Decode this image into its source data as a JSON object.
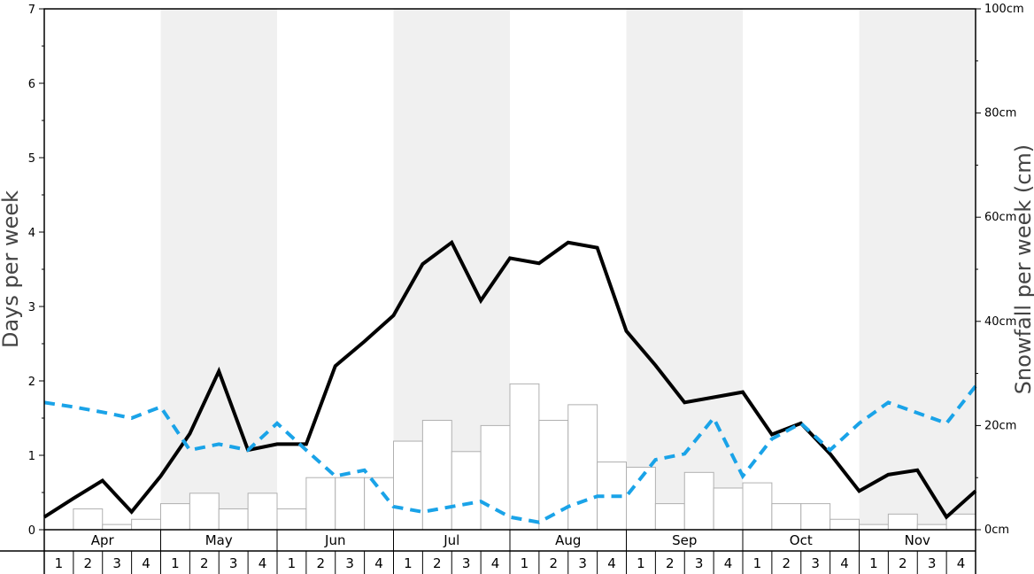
{
  "chart_data": {
    "type": "bar+line",
    "months": [
      "Apr",
      "May",
      "Jun",
      "Jul",
      "Aug",
      "Sep",
      "Oct",
      "Nov"
    ],
    "week_labels": [
      "1",
      "2",
      "3",
      "4"
    ],
    "left_axis": {
      "label": "Days per week",
      "ylim": [
        0,
        7
      ],
      "ticks": [
        0,
        1,
        2,
        3,
        4,
        5,
        6,
        7
      ],
      "tick_labels": [
        "0",
        "1",
        "2",
        "3",
        "4",
        "5",
        "6",
        "7"
      ]
    },
    "right_axis": {
      "label": "Snowfall per week (cm)",
      "ylim": [
        0,
        100
      ],
      "ticks": [
        0,
        20,
        40,
        60,
        80,
        100
      ],
      "tick_labels": [
        "0cm",
        "20cm",
        "40cm",
        "60cm",
        "80cm",
        "100cm"
      ]
    },
    "series": [
      {
        "kind": "bar",
        "axis": "right",
        "values": [
          0,
          4,
          1,
          2,
          5,
          7,
          4,
          7,
          4,
          10,
          10,
          10,
          17,
          21,
          15,
          20,
          28,
          21,
          24,
          13,
          12,
          5,
          11,
          8,
          9,
          5,
          5,
          2,
          1,
          3,
          1,
          3
        ]
      },
      {
        "kind": "line",
        "axis": "left",
        "style": "solid",
        "color": "#000000",
        "values": [
          0.17,
          0.42,
          0.66,
          0.24,
          0.72,
          1.29,
          2.13,
          1.07,
          1.15,
          1.15,
          2.2,
          2.53,
          2.88,
          3.57,
          3.86,
          3.08,
          3.65,
          3.58,
          3.86,
          3.79,
          2.67,
          2.21,
          1.71,
          1.78,
          1.85,
          1.28,
          1.43,
          1.02,
          0.52,
          0.74,
          0.8,
          0.17,
          0.52
        ]
      },
      {
        "kind": "line",
        "axis": "left",
        "style": "dashed",
        "color": "#1aa3e8",
        "values": [
          1.71,
          1.65,
          1.58,
          1.5,
          1.65,
          1.07,
          1.15,
          1.07,
          1.43,
          1.07,
          0.72,
          0.8,
          0.31,
          0.24,
          0.31,
          0.38,
          0.17,
          0.1,
          0.31,
          0.45,
          0.45,
          0.94,
          1.02,
          1.5,
          0.72,
          1.22,
          1.43,
          1.07,
          1.43,
          1.71,
          1.57,
          1.43,
          1.93
        ]
      }
    ],
    "colors": {
      "band_shade": "#f0f0f0",
      "bar_fill": "#ffffff",
      "bar_stroke": "#b0b0b0",
      "axis": "#000000"
    },
    "grid": false,
    "legend": "none"
  }
}
